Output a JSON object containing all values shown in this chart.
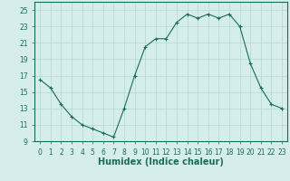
{
  "x": [
    0,
    1,
    2,
    3,
    4,
    5,
    6,
    7,
    8,
    9,
    10,
    11,
    12,
    13,
    14,
    15,
    16,
    17,
    18,
    19,
    20,
    21,
    22,
    23
  ],
  "y": [
    16.5,
    15.5,
    13.5,
    12.0,
    11.0,
    10.5,
    10.0,
    9.5,
    13.0,
    17.0,
    20.5,
    21.5,
    21.5,
    23.5,
    24.5,
    24.0,
    24.5,
    24.0,
    24.5,
    23.0,
    18.5,
    15.5,
    13.5,
    13.0
  ],
  "line_color": "#1a6b5a",
  "marker": "+",
  "bg_color": "#d5eeed",
  "grid_color": "#b0d8d4",
  "xlabel": "Humidex (Indice chaleur)",
  "ylim": [
    9,
    26
  ],
  "yticks": [
    9,
    11,
    13,
    15,
    17,
    19,
    21,
    23,
    25
  ],
  "xlim": [
    -0.5,
    23.5
  ],
  "tick_fontsize": 5.5,
  "xlabel_fontsize": 7.0
}
